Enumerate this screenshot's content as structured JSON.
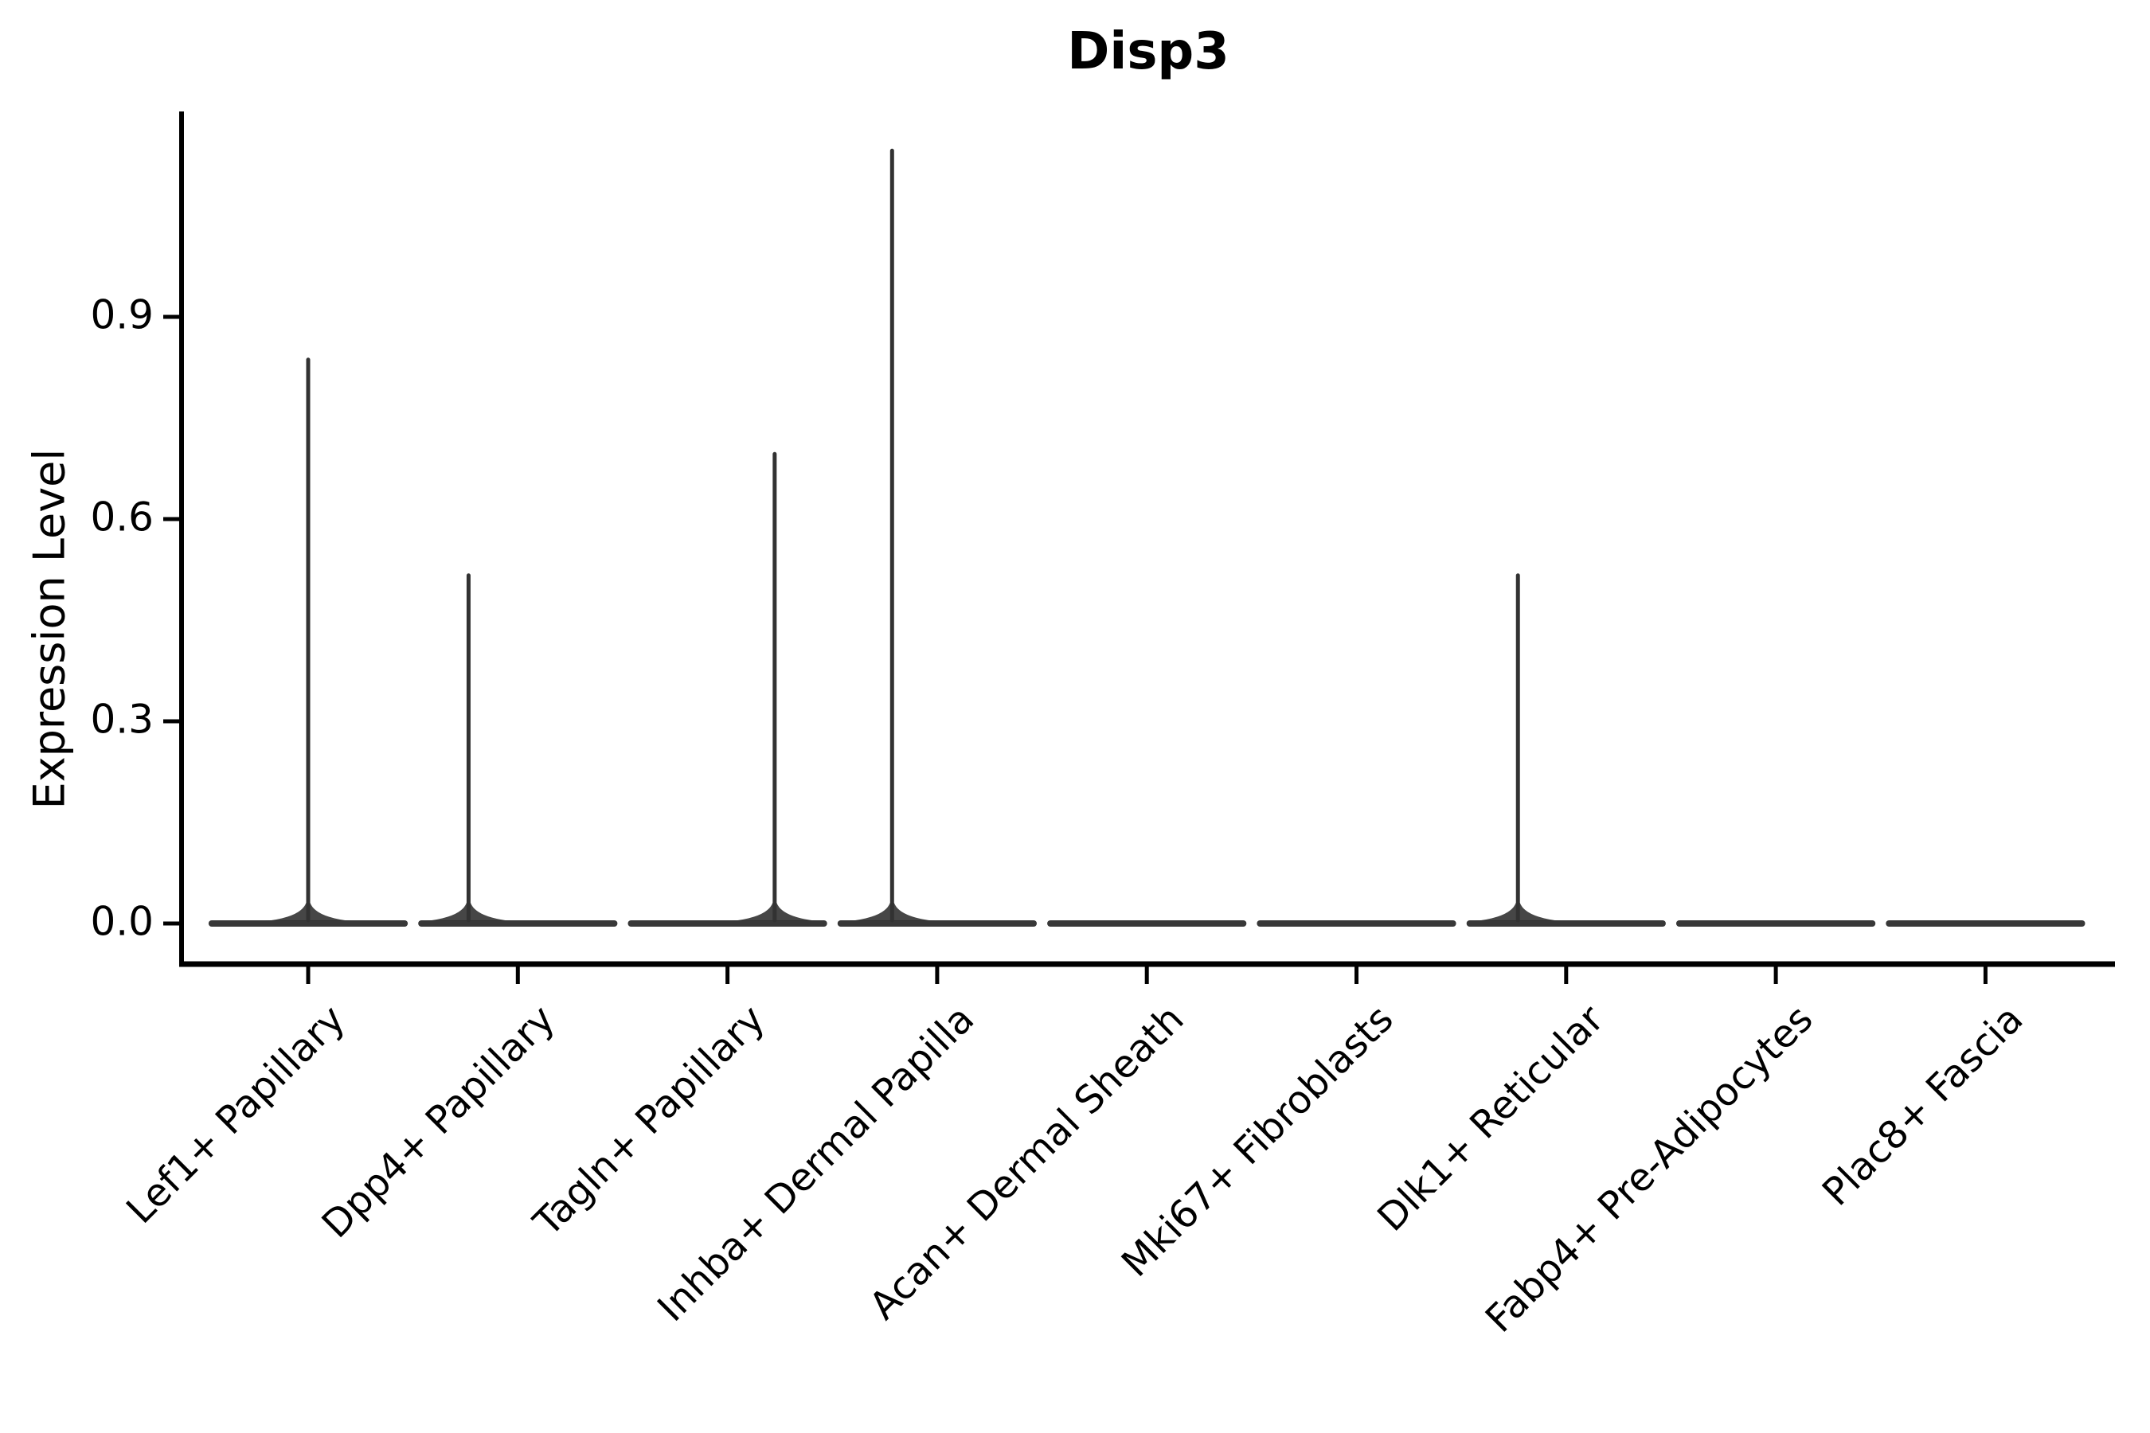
{
  "figure": {
    "title": "Disp3",
    "y_axis_label": "Expression Level"
  },
  "chart_data": {
    "type": "violin",
    "title": "Disp3",
    "xlabel": "",
    "ylabel": "Expression Level",
    "categories": [
      "Lef1+ Papillary",
      "Dpp4+ Papillary",
      "Tagln+ Papillary",
      "Inhba+ Dermal Papilla",
      "Acan+ Dermal Sheath",
      "Mki67+ Fibroblasts",
      "Dlk1+ Reticular",
      "Fabp4+ Pre-Adipocytes",
      "Plac8+ Fascia"
    ],
    "y_tick_labels": [
      "0.0",
      "0.3",
      "0.6",
      "0.9"
    ],
    "y_tick_values": [
      0.0,
      0.3,
      0.6,
      0.9
    ],
    "ylim": [
      -0.06,
      1.2
    ],
    "grid": false,
    "legend": null,
    "description": "Violin plot of Disp3 expression; nearly all density is a flat band at 0 with thin spikes reaching the maximum expressed value in some clusters.",
    "series": [
      {
        "name": "peak_expression",
        "values": [
          0.84,
          0.52,
          0.7,
          1.15,
          0.0,
          0.0,
          0.52,
          0.0,
          0.0
        ]
      }
    ],
    "violins": [
      {
        "category": "Lef1+ Papillary",
        "peak": 0.84,
        "spike_offset": 0.0
      },
      {
        "category": "Dpp4+ Papillary",
        "peak": 0.52,
        "spike_offset": -0.235
      },
      {
        "category": "Tagln+ Papillary",
        "peak": 0.7,
        "spike_offset": 0.225
      },
      {
        "category": "Inhba+ Dermal Papilla",
        "peak": 1.15,
        "spike_offset": -0.215
      },
      {
        "category": "Acan+ Dermal Sheath",
        "peak": 0.0,
        "spike_offset": 0.0
      },
      {
        "category": "Mki67+ Fibroblasts",
        "peak": 0.0,
        "spike_offset": 0.0
      },
      {
        "category": "Dlk1+ Reticular",
        "peak": 0.52,
        "spike_offset": -0.23
      },
      {
        "category": "Fabp4+ Pre-Adipocytes",
        "peak": 0.0,
        "spike_offset": 0.0
      },
      {
        "category": "Plac8+ Fascia",
        "peak": 0.0,
        "spike_offset": 0.0
      }
    ],
    "base_halfwidth_fraction": 0.46,
    "colors": {
      "violin": "#323232",
      "axis": "#000000",
      "text": "#000000",
      "background": "#ffffff"
    }
  }
}
